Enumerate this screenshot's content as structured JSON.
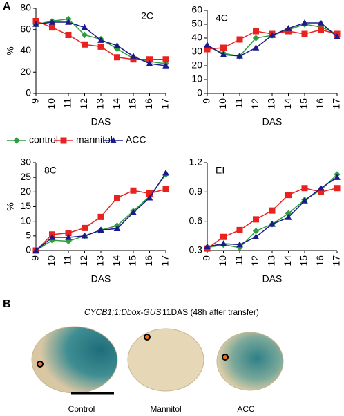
{
  "panel_labels": [
    "A",
    "B"
  ],
  "chart_data": [
    {
      "type": "line",
      "label": "2C",
      "y_label": "%",
      "x_label": "DAS",
      "x": [
        9,
        10,
        11,
        12,
        13,
        14,
        15,
        16,
        17
      ],
      "xlim": [
        9,
        17
      ],
      "xticks": [
        9,
        10,
        11,
        12,
        13,
        14,
        15,
        16,
        17
      ],
      "ylim": [
        0,
        80
      ],
      "yticks": [
        0,
        20,
        40,
        60,
        80
      ],
      "series": [
        {
          "name": "control",
          "color": "#2e9e3e",
          "marker": "diamond",
          "values": [
            65,
            68,
            70,
            55,
            51,
            42,
            33,
            30,
            28
          ]
        },
        {
          "name": "mannitol",
          "color": "#e8221f",
          "marker": "square",
          "values": [
            68,
            62,
            55,
            46,
            44,
            34,
            32,
            32,
            32
          ]
        },
        {
          "name": "ACC",
          "color": "#1a1a8c",
          "marker": "triangle",
          "values": [
            65,
            67,
            67,
            62,
            50,
            45,
            35,
            28,
            26
          ]
        }
      ]
    },
    {
      "type": "line",
      "label": "4C",
      "x_label": "DAS",
      "x": [
        9,
        10,
        11,
        12,
        13,
        14,
        15,
        16,
        17
      ],
      "xlim": [
        9,
        17
      ],
      "xticks": [
        9,
        10,
        11,
        12,
        13,
        14,
        15,
        16,
        17
      ],
      "ylim": [
        0,
        60
      ],
      "yticks": [
        0,
        10,
        20,
        30,
        40,
        50,
        60
      ],
      "series": [
        {
          "name": "control",
          "color": "#2e9e3e",
          "marker": "diamond",
          "values": [
            34,
            29,
            27,
            40,
            42,
            46,
            50,
            48,
            43
          ]
        },
        {
          "name": "mannitol",
          "color": "#e8221f",
          "marker": "square",
          "values": [
            32,
            33,
            39,
            45,
            43,
            45,
            43,
            46,
            43
          ]
        },
        {
          "name": "ACC",
          "color": "#1a1a8c",
          "marker": "triangle",
          "values": [
            35,
            28,
            27,
            33,
            42,
            47,
            51,
            51,
            41
          ]
        }
      ]
    },
    {
      "type": "line",
      "label": "8C",
      "y_label": "%",
      "x_label": "DAS",
      "x": [
        9,
        10,
        11,
        12,
        13,
        14,
        15,
        16,
        17
      ],
      "xlim": [
        9,
        17
      ],
      "xticks": [
        9,
        10,
        11,
        12,
        13,
        14,
        15,
        16,
        17
      ],
      "ylim": [
        0,
        30
      ],
      "yticks": [
        0,
        5,
        10,
        15,
        20,
        25,
        30
      ],
      "series": [
        {
          "name": "control",
          "color": "#2e9e3e",
          "marker": "diamond",
          "values": [
            0,
            3.5,
            3.2,
            5,
            7,
            8.5,
            13.5,
            18.5,
            26
          ]
        },
        {
          "name": "mannitol",
          "color": "#e8221f",
          "marker": "square",
          "values": [
            0,
            5.5,
            6,
            7.7,
            11.5,
            18,
            20.5,
            19.5,
            21
          ]
        },
        {
          "name": "ACC",
          "color": "#1a1a8c",
          "marker": "triangle",
          "values": [
            0,
            4.5,
            4.5,
            5,
            7,
            7.5,
            13,
            18,
            26.5
          ]
        }
      ]
    },
    {
      "type": "line",
      "label": "EI",
      "x_label": "DAS",
      "x": [
        9,
        10,
        11,
        12,
        13,
        14,
        15,
        16,
        17
      ],
      "xlim": [
        9,
        17
      ],
      "xticks": [
        9,
        10,
        11,
        12,
        13,
        14,
        15,
        16,
        17
      ],
      "ylim": [
        0.3,
        1.2
      ],
      "yticks": [
        0.3,
        0.6,
        0.9,
        1.2
      ],
      "series": [
        {
          "name": "control",
          "color": "#2e9e3e",
          "marker": "diamond",
          "values": [
            0.33,
            0.36,
            0.33,
            0.5,
            0.57,
            0.68,
            0.82,
            0.92,
            1.08
          ]
        },
        {
          "name": "mannitol",
          "color": "#e8221f",
          "marker": "square",
          "values": [
            0.32,
            0.44,
            0.51,
            0.62,
            0.71,
            0.87,
            0.94,
            0.9,
            0.94
          ]
        },
        {
          "name": "ACC",
          "color": "#1a1a8c",
          "marker": "triangle",
          "values": [
            0.34,
            0.37,
            0.36,
            0.44,
            0.57,
            0.64,
            0.81,
            0.94,
            1.05
          ]
        }
      ]
    }
  ],
  "photo": {
    "construct": "CYCB1;1:Dbox-GUS",
    "subtitle": "11DAS (48h after transfer)",
    "captions": [
      "Control",
      "Mannitol",
      "ACC"
    ]
  }
}
